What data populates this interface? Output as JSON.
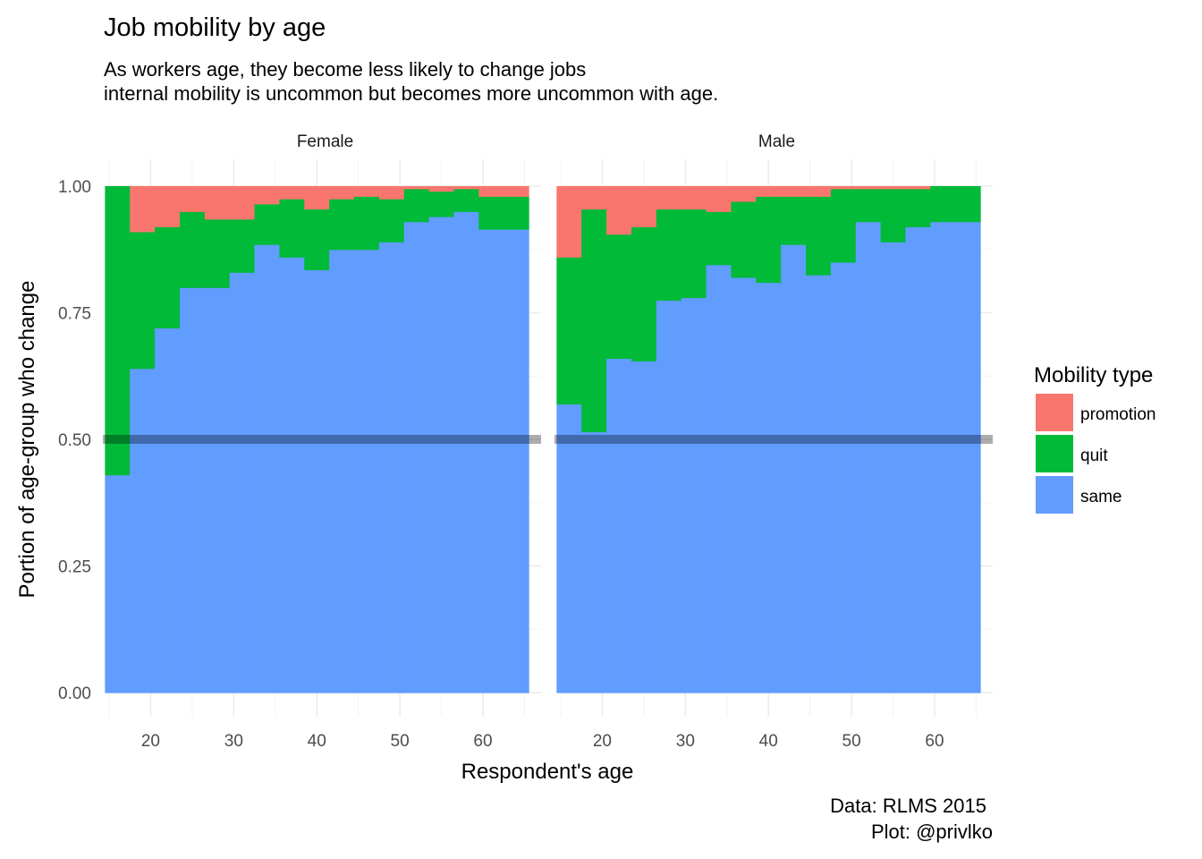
{
  "title": "Job mobility by age",
  "subtitle_lines": [
    "As workers age, they become less likely to change jobs",
    "internal mobility is uncommon but becomes more uncommon with age."
  ],
  "caption_lines": [
    "Data: RLMS 2015",
    "Plot: @privlko"
  ],
  "chart_data": {
    "type": "bar",
    "stacked": true,
    "xlabel": "Respondent's age",
    "ylabel": "Portion of age-group who change",
    "xlim": [
      15,
      67
    ],
    "ylim": [
      0,
      1
    ],
    "x_ticks": [
      20,
      30,
      40,
      50,
      60
    ],
    "y_ticks": [
      0.0,
      0.25,
      0.5,
      0.75,
      1.0
    ],
    "y_tick_labels": [
      "0.00",
      "0.25",
      "0.50",
      "0.75",
      "1.00"
    ],
    "reference_line_y": 0.5,
    "grid": true,
    "bin_width": 3,
    "categories": [
      16,
      19,
      22,
      25,
      28,
      31,
      34,
      37,
      40,
      43,
      46,
      49,
      52,
      55,
      58,
      61,
      64
    ],
    "legend": {
      "title": "Mobility type",
      "position": "right",
      "items": [
        {
          "name": "promotion",
          "color": "#F8766D"
        },
        {
          "name": "quit",
          "color": "#00BA38"
        },
        {
          "name": "same",
          "color": "#619CFF"
        }
      ]
    },
    "panels": [
      {
        "name": "Female",
        "series": [
          {
            "name": "same",
            "values": [
              0.43,
              0.64,
              0.72,
              0.8,
              0.8,
              0.83,
              0.885,
              0.86,
              0.835,
              0.875,
              0.875,
              0.89,
              0.93,
              0.94,
              0.95,
              0.915,
              0.915
            ]
          },
          {
            "name": "quit",
            "values": [
              0.57,
              0.27,
              0.2,
              0.15,
              0.135,
              0.105,
              0.08,
              0.115,
              0.12,
              0.1,
              0.105,
              0.085,
              0.065,
              0.05,
              0.045,
              0.065,
              0.065
            ]
          },
          {
            "name": "promotion",
            "values": [
              0.0,
              0.09,
              0.08,
              0.05,
              0.065,
              0.065,
              0.035,
              0.025,
              0.045,
              0.025,
              0.02,
              0.025,
              0.005,
              0.01,
              0.005,
              0.02,
              0.02
            ]
          }
        ]
      },
      {
        "name": "Male",
        "series": [
          {
            "name": "same",
            "values": [
              0.57,
              0.515,
              0.66,
              0.655,
              0.775,
              0.78,
              0.845,
              0.82,
              0.81,
              0.885,
              0.825,
              0.85,
              0.93,
              0.89,
              0.92,
              0.93,
              0.93
            ]
          },
          {
            "name": "quit",
            "values": [
              0.29,
              0.44,
              0.245,
              0.265,
              0.18,
              0.175,
              0.105,
              0.15,
              0.17,
              0.095,
              0.155,
              0.145,
              0.065,
              0.105,
              0.075,
              0.07,
              0.07
            ]
          },
          {
            "name": "promotion",
            "values": [
              0.14,
              0.045,
              0.095,
              0.08,
              0.045,
              0.045,
              0.05,
              0.03,
              0.02,
              0.02,
              0.02,
              0.005,
              0.005,
              0.005,
              0.005,
              0.0,
              0.0
            ]
          }
        ]
      }
    ]
  }
}
